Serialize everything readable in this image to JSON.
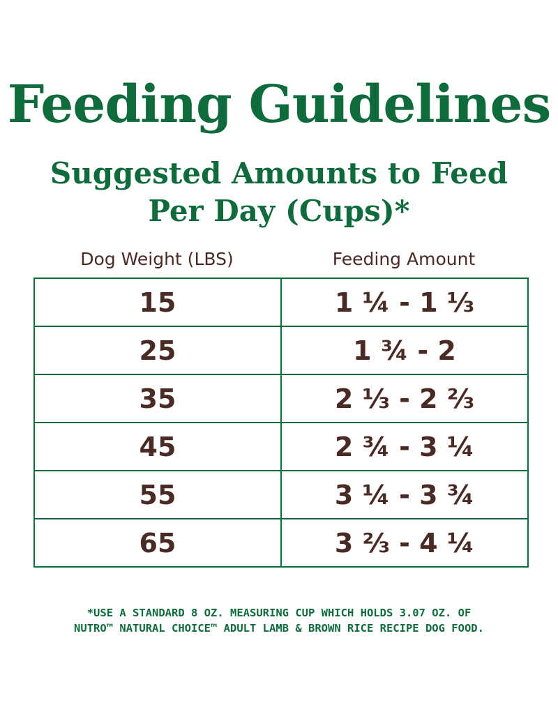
{
  "title": "Feeding Guidelines",
  "subtitle": {
    "line1": "Suggested Amounts to Feed",
    "line2": "Per Day (Cups)*"
  },
  "table": {
    "headers": [
      "Dog Weight (LBS)",
      "Feeding Amount"
    ],
    "rows": [
      {
        "weight": "15",
        "amount": "1 ¼ - 1 ⅓"
      },
      {
        "weight": "25",
        "amount": "1 ¾ - 2"
      },
      {
        "weight": "35",
        "amount": "2 ⅓ - 2 ⅔"
      },
      {
        "weight": "45",
        "amount": "2 ¾ - 3 ¼"
      },
      {
        "weight": "55",
        "amount": "3 ¼ - 3 ¾"
      },
      {
        "weight": "65",
        "amount": "3 ⅔ - 4 ¼"
      }
    ]
  },
  "footnote": {
    "line1": "*USE A STANDARD 8 OZ. MEASURING CUP WHICH HOLDS 3.07 OZ. OF",
    "line2": "NUTRO™ NATURAL CHOICE™ ADULT LAMB & BROWN RICE RECIPE DOG FOOD."
  },
  "colors": {
    "green": "#0f6a3c",
    "brown": "#4a2a24",
    "background": "#ffffff"
  }
}
